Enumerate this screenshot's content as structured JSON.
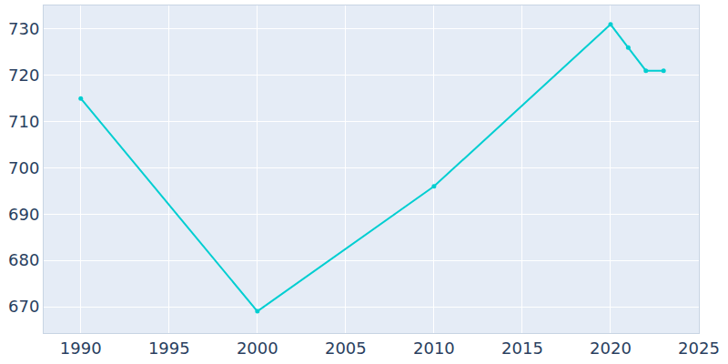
{
  "chart_data": {
    "type": "line",
    "x": [
      1990,
      2000,
      2010,
      2020,
      2021,
      2022,
      2023
    ],
    "values": [
      715,
      669,
      696,
      731,
      726,
      721,
      721
    ],
    "color": "#00ced1",
    "marker": "circle",
    "xlim": [
      1987.9,
      2025
    ],
    "ylim": [
      664.3,
      735.1
    ],
    "xticks": [
      1990,
      1995,
      2000,
      2005,
      2010,
      2015,
      2020,
      2025
    ],
    "yticks": [
      670,
      680,
      690,
      700,
      710,
      720,
      730
    ],
    "grid": true
  }
}
